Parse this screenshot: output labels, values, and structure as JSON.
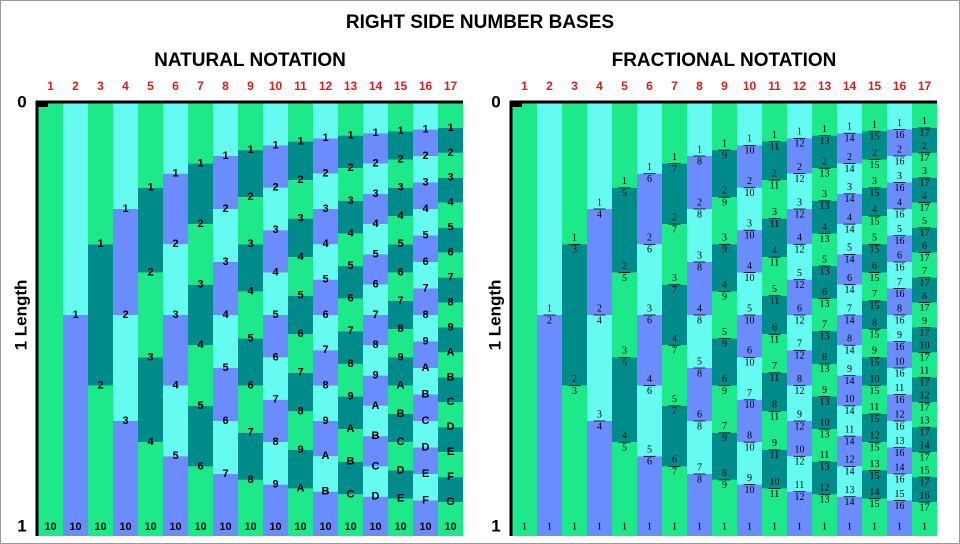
{
  "title": "RIGHT SIDE NUMBER BASES",
  "top_label": "0",
  "bottom_label": "1",
  "axis_label": "1 Length",
  "panels": [
    {
      "title": "NATURAL NOTATION",
      "notation": "natural",
      "columns": [
        {
          "header": "1",
          "labels": [],
          "bottom": "10"
        },
        {
          "header": "2",
          "labels": [
            "1"
          ],
          "bottom": "10"
        },
        {
          "header": "3",
          "labels": [
            "1",
            "2"
          ],
          "bottom": "10"
        },
        {
          "header": "4",
          "labels": [
            "1",
            "2",
            "3"
          ],
          "bottom": "10"
        },
        {
          "header": "5",
          "labels": [
            "1",
            "2",
            "3",
            "4"
          ],
          "bottom": "10"
        },
        {
          "header": "6",
          "labels": [
            "1",
            "2",
            "3",
            "4",
            "5"
          ],
          "bottom": "10"
        },
        {
          "header": "7",
          "labels": [
            "1",
            "2",
            "3",
            "4",
            "5",
            "6"
          ],
          "bottom": "10"
        },
        {
          "header": "8",
          "labels": [
            "1",
            "2",
            "3",
            "4",
            "5",
            "6",
            "7"
          ],
          "bottom": "10"
        },
        {
          "header": "9",
          "labels": [
            "1",
            "2",
            "3",
            "4",
            "5",
            "6",
            "7",
            "8"
          ],
          "bottom": "10"
        },
        {
          "header": "10",
          "labels": [
            "1",
            "2",
            "3",
            "4",
            "5",
            "6",
            "7",
            "8",
            "9"
          ],
          "bottom": "10"
        },
        {
          "header": "11",
          "labels": [
            "1",
            "2",
            "3",
            "4",
            "5",
            "6",
            "7",
            "8",
            "9",
            "A"
          ],
          "bottom": "10"
        },
        {
          "header": "12",
          "labels": [
            "1",
            "2",
            "3",
            "4",
            "5",
            "6",
            "7",
            "8",
            "9",
            "A",
            "B"
          ],
          "bottom": "10"
        },
        {
          "header": "13",
          "labels": [
            "1",
            "2",
            "3",
            "4",
            "5",
            "6",
            "7",
            "8",
            "9",
            "A",
            "B",
            "C"
          ],
          "bottom": "10"
        },
        {
          "header": "14",
          "labels": [
            "1",
            "2",
            "3",
            "4",
            "5",
            "6",
            "7",
            "8",
            "9",
            "A",
            "B",
            "C",
            "D"
          ],
          "bottom": "10"
        },
        {
          "header": "15",
          "labels": [
            "1",
            "2",
            "3",
            "4",
            "5",
            "6",
            "7",
            "8",
            "9",
            "A",
            "B",
            "C",
            "D",
            "E"
          ],
          "bottom": "10"
        },
        {
          "header": "16",
          "labels": [
            "1",
            "2",
            "3",
            "4",
            "5",
            "6",
            "7",
            "8",
            "9",
            "A",
            "B",
            "C",
            "D",
            "E",
            "F"
          ],
          "bottom": "10"
        },
        {
          "header": "17",
          "labels": [
            "1",
            "2",
            "3",
            "4",
            "5",
            "6",
            "7",
            "8",
            "9",
            "A",
            "B",
            "C",
            "D",
            "E",
            "F",
            "G"
          ],
          "bottom": "10"
        }
      ]
    },
    {
      "title": "FRACTIONAL NOTATION",
      "notation": "fractional",
      "columns": [
        {
          "header": "1",
          "labels": [],
          "denominator": "1",
          "bottom": "1"
        },
        {
          "header": "2",
          "labels": [
            "1"
          ],
          "denominator": "2",
          "bottom": "1"
        },
        {
          "header": "3",
          "labels": [
            "1",
            "2"
          ],
          "denominator": "3",
          "bottom": "1"
        },
        {
          "header": "4",
          "labels": [
            "1",
            "2",
            "3"
          ],
          "denominator": "4",
          "bottom": "1"
        },
        {
          "header": "5",
          "labels": [
            "1",
            "2",
            "3",
            "4"
          ],
          "denominator": "5",
          "bottom": "1"
        },
        {
          "header": "6",
          "labels": [
            "1",
            "2",
            "3",
            "4",
            "5"
          ],
          "denominator": "6",
          "bottom": "1"
        },
        {
          "header": "7",
          "labels": [
            "1",
            "2",
            "3",
            "4",
            "5",
            "6"
          ],
          "denominator": "7",
          "bottom": "1"
        },
        {
          "header": "8",
          "labels": [
            "1",
            "2",
            "3",
            "4",
            "5",
            "6",
            "7"
          ],
          "denominator": "8",
          "bottom": "1"
        },
        {
          "header": "9",
          "labels": [
            "1",
            "2",
            "3",
            "4",
            "5",
            "6",
            "7",
            "8"
          ],
          "denominator": "9",
          "bottom": "1"
        },
        {
          "header": "10",
          "labels": [
            "1",
            "2",
            "3",
            "4",
            "5",
            "6",
            "7",
            "8",
            "9"
          ],
          "denominator": "10",
          "bottom": "1"
        },
        {
          "header": "11",
          "labels": [
            "1",
            "2",
            "3",
            "4",
            "5",
            "6",
            "7",
            "8",
            "9",
            "10"
          ],
          "denominator": "11",
          "bottom": "1"
        },
        {
          "header": "12",
          "labels": [
            "1",
            "2",
            "3",
            "4",
            "5",
            "6",
            "7",
            "8",
            "9",
            "10",
            "11"
          ],
          "denominator": "12",
          "bottom": "1"
        },
        {
          "header": "13",
          "labels": [
            "1",
            "2",
            "3",
            "4",
            "5",
            "6",
            "7",
            "8",
            "9",
            "10",
            "11",
            "12"
          ],
          "denominator": "13",
          "bottom": "1"
        },
        {
          "header": "14",
          "labels": [
            "1",
            "2",
            "3",
            "4",
            "5",
            "6",
            "7",
            "8",
            "9",
            "10",
            "11",
            "12",
            "13"
          ],
          "denominator": "14",
          "bottom": "1"
        },
        {
          "header": "15",
          "labels": [
            "1",
            "2",
            "3",
            "4",
            "5",
            "6",
            "7",
            "8",
            "9",
            "10",
            "11",
            "12",
            "13",
            "14"
          ],
          "denominator": "15",
          "bottom": "1"
        },
        {
          "header": "16",
          "labels": [
            "1",
            "2",
            "3",
            "4",
            "5",
            "6",
            "7",
            "8",
            "9",
            "10",
            "11",
            "12",
            "13",
            "14",
            "15"
          ],
          "denominator": "16",
          "bottom": "1"
        },
        {
          "header": "17",
          "labels": [
            "1",
            "2",
            "3",
            "4",
            "5",
            "6",
            "7",
            "8",
            "9",
            "10",
            "11",
            "12",
            "13",
            "14",
            "15",
            "16"
          ],
          "denominator": "17",
          "bottom": "1"
        }
      ]
    }
  ]
}
